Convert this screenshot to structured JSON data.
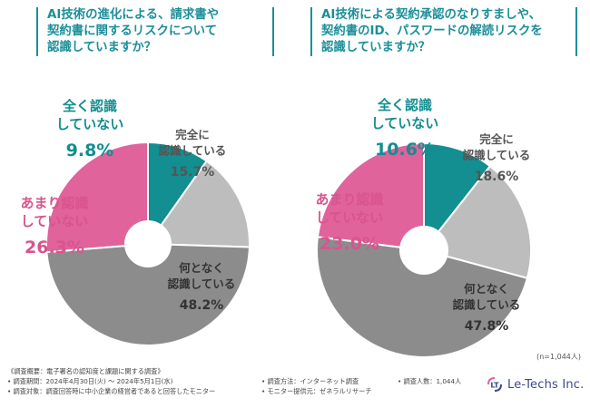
{
  "chart_data": [
    {
      "type": "pie",
      "title_lines": [
        "AI技術の進化による、請求書や",
        "契約書に関するリスクについて",
        "認識していますか？"
      ],
      "categories": [
        "全く認識していない",
        "完全に認識している",
        "何となく認識している",
        "あまり認識していない"
      ],
      "values": [
        9.8,
        15.7,
        48.2,
        26.3
      ],
      "colors": [
        "#138e91",
        "#bdbdbd",
        "#8c8c8c",
        "#e0639b"
      ],
      "labels": [
        {
          "lines": [
            "全く認識",
            "していない"
          ],
          "value": "9.8%"
        },
        {
          "lines": [
            "完全に",
            "認識している"
          ],
          "value": "15.7%"
        },
        {
          "lines": [
            "何となく",
            "認識している"
          ],
          "value": "48.2%"
        },
        {
          "lines": [
            "あまり認識",
            "していない"
          ],
          "value": "26.3%"
        }
      ]
    },
    {
      "type": "pie",
      "title_lines": [
        "AI技術による契約承認のなりすましや、",
        "契約書のID、パスワードの解読リスクを",
        "認識していますか？"
      ],
      "categories": [
        "全く認識していない",
        "完全に認識している",
        "何となく認識している",
        "あまり認識していない"
      ],
      "values": [
        10.6,
        18.6,
        47.8,
        23.0
      ],
      "colors": [
        "#138e91",
        "#bdbdbd",
        "#8c8c8c",
        "#e0639b"
      ],
      "labels": [
        {
          "lines": [
            "全く認識",
            "していない"
          ],
          "value": "10.6%"
        },
        {
          "lines": [
            "完全に",
            "認識している"
          ],
          "value": "18.6%"
        },
        {
          "lines": [
            "何となく",
            "認識している"
          ],
          "value": "47.8%"
        },
        {
          "lines": [
            "あまり認識",
            "していない"
          ],
          "value": "23.0%"
        }
      ]
    }
  ],
  "sample_size": "(n=1,044人)",
  "footer": {
    "survey_title": "《調査概要：電子署名の認知度と課題に関する調査》",
    "period": "• 調査期間：2024年4月30日(火) 〜 2024年5月1日(水)",
    "target": "• 調査対象：調査回答時に中小企業の経営者であると回答したモニター",
    "method": "• 調査方法：インターネット調査",
    "provider": "• モニター提供元：ゼネラルリサーチ",
    "respondents": "• 調査人数：1,044人"
  },
  "logo": {
    "mark": "LT",
    "text": "Le-Techs Inc."
  }
}
